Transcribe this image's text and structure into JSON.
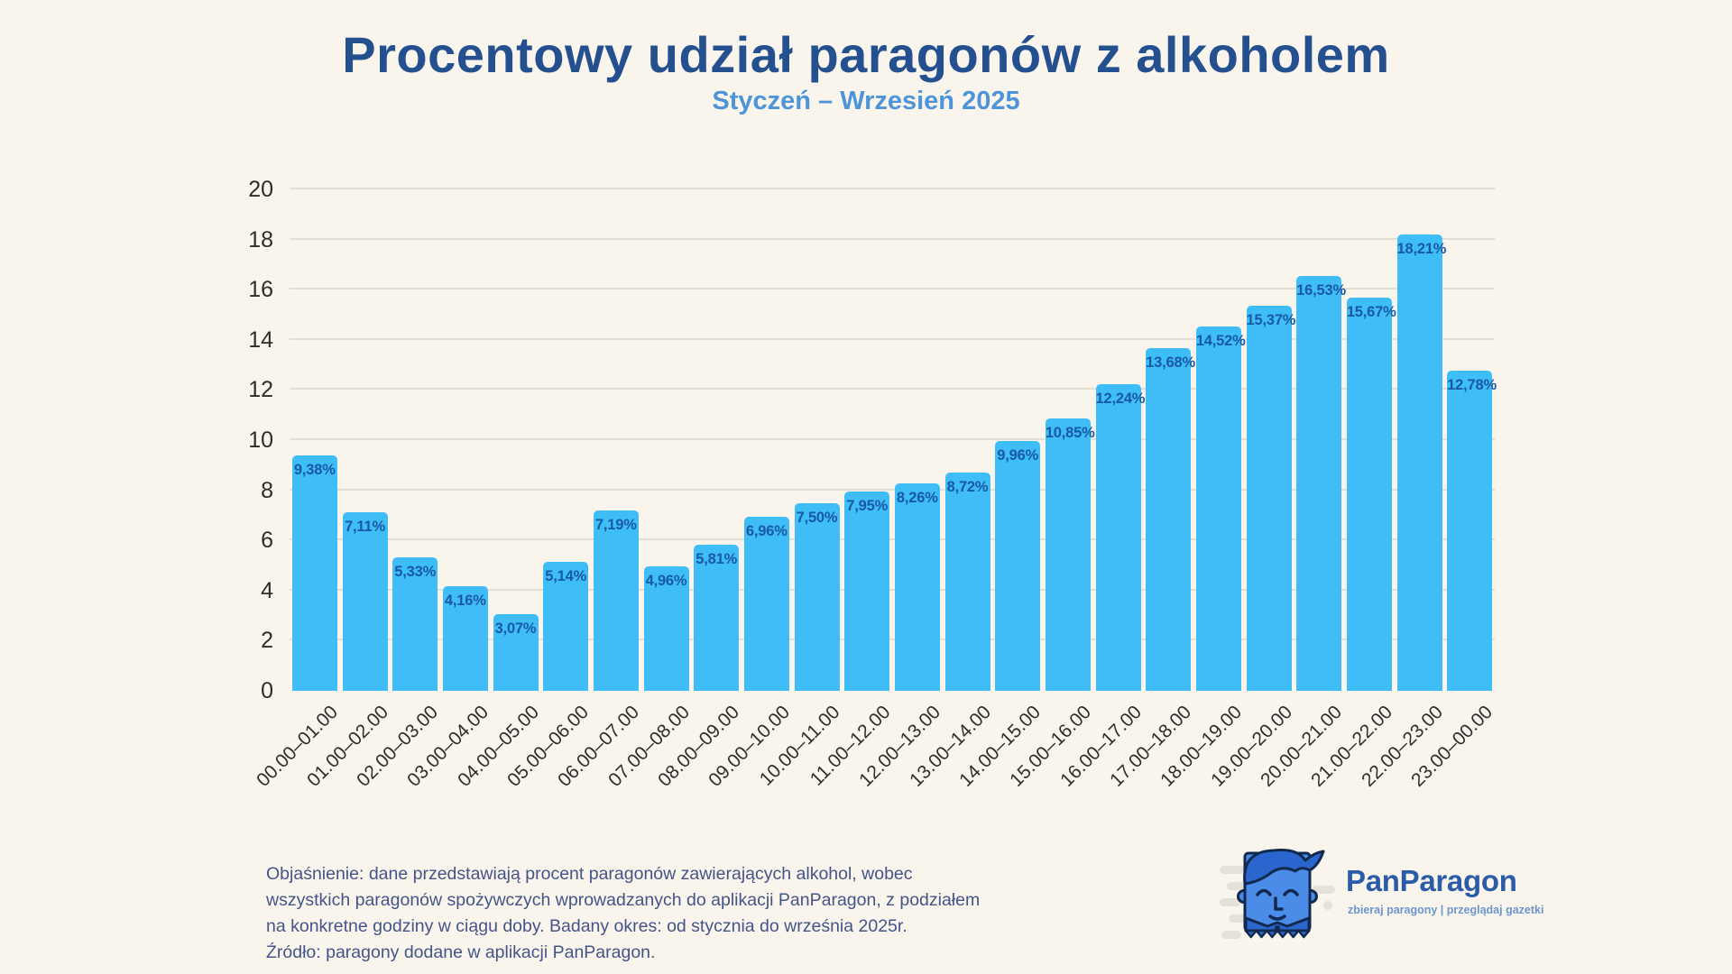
{
  "chart_data": {
    "type": "bar",
    "title": "Procentowy udział paragonów z alkoholem",
    "subtitle": "Styczeń – Wrzesień 2025",
    "xlabel": "",
    "ylabel": "",
    "ylim": [
      0,
      20
    ],
    "ytick_step": 2,
    "grid": true,
    "categories": [
      "00.00–01.00",
      "01.00–02.00",
      "02.00–03.00",
      "03.00–04.00",
      "04.00–05.00",
      "05.00–06.00",
      "06.00–07.00",
      "07.00–08.00",
      "08.00–09.00",
      "09.00–10.00",
      "10.00–11.00",
      "11.00–12.00",
      "12.00–13.00",
      "13.00–14.00",
      "14.00–15.00",
      "15.00–16.00",
      "16.00–17.00",
      "17.00–18.00",
      "18.00–19.00",
      "19.00–20.00",
      "20.00–21.00",
      "21.00–22.00",
      "22.00–23.00",
      "23.00–00.00"
    ],
    "values": [
      9.38,
      7.11,
      5.33,
      4.16,
      3.07,
      5.14,
      7.19,
      4.96,
      5.81,
      6.96,
      7.5,
      7.95,
      8.26,
      8.72,
      9.96,
      10.85,
      12.24,
      13.68,
      14.52,
      15.37,
      16.53,
      15.67,
      18.21,
      12.78
    ],
    "value_labels": [
      "9,38%",
      "7,11%",
      "5,33%",
      "4,16%",
      "3,07%",
      "5,14%",
      "7,19%",
      "4,96%",
      "5,81%",
      "6,96%",
      "7,50%",
      "7,95%",
      "8,26%",
      "8,72%",
      "9,96%",
      "10,85%",
      "12,24%",
      "13,68%",
      "14,52%",
      "15,37%",
      "16,53%",
      "15,67%",
      "18,21%",
      "12,78%"
    ]
  },
  "footnote": {
    "lines": [
      "Objaśnienie: dane przedstawiają procent paragonów zawierających alkohol, wobec",
      "wszystkich paragonów spożywczych wprowadzanych do aplikacji PanParagon, z podziałem",
      "na konkretne godziny w ciągu doby.  Badany okres: od stycznia do września 2025r.",
      "Źródło: paragony dodane w aplikacji PanParagon."
    ]
  },
  "logo": {
    "name": "PanParagon",
    "tagline": "zbieraj paragony | przeglądaj gazetki"
  },
  "colors": {
    "bg": "#FAF5EC",
    "title": "#24508F",
    "subtitle": "#4D94D8",
    "bar": "#3FBDF7",
    "vlabel": "#1859A4",
    "grid": "#E4DFD4",
    "axis": "#2D2D2D",
    "footnote": "#435489",
    "logodark": "#2A5CA8",
    "logolight": "#6C96CF",
    "outline": "#12294E",
    "face": "#4A8CE8",
    "hair": "#2B66CE",
    "speed": "#E3E1D8"
  }
}
